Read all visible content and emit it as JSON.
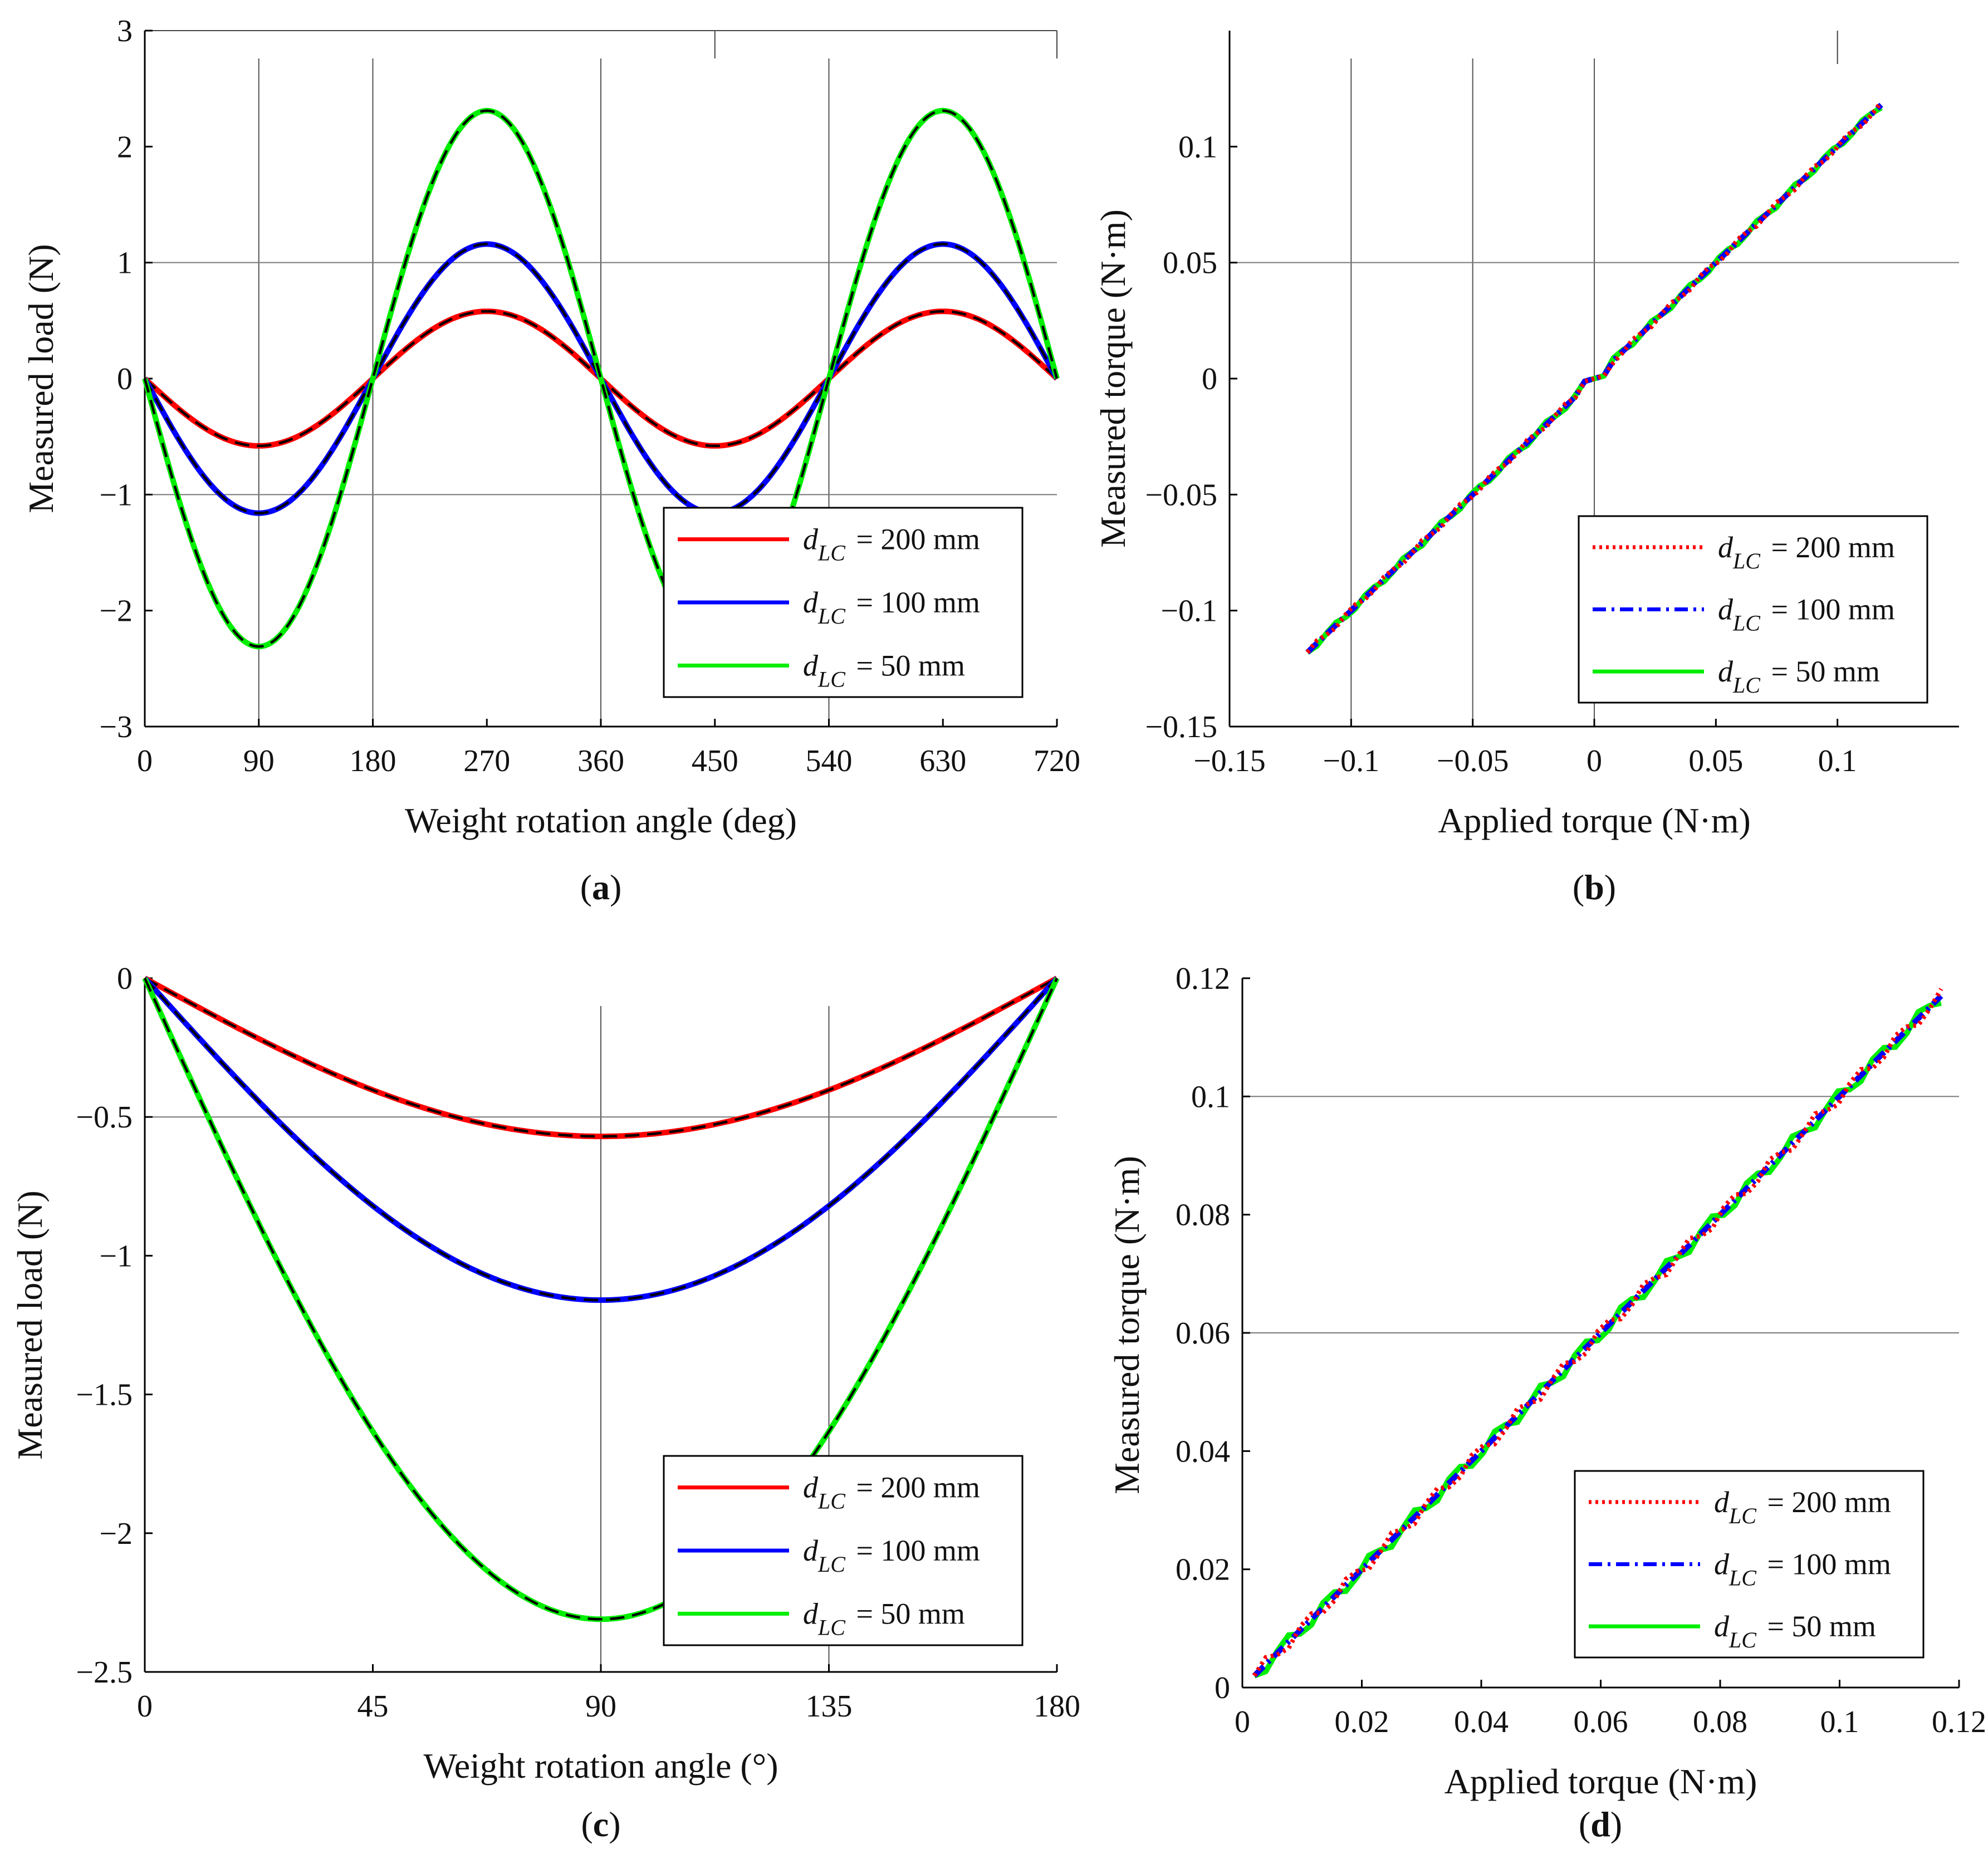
{
  "panel_labels": [
    "(a)",
    "(b)",
    "(c)",
    "(d)"
  ],
  "legend_entries": [
    {
      "var": "d",
      "sub": "LC",
      "text": "= 200 mm"
    },
    {
      "var": "d",
      "sub": "LC",
      "text": "= 100 mm"
    },
    {
      "var": "d",
      "sub": "LC",
      "text": "=   50 mm"
    }
  ],
  "colors": {
    "red": "#ff0000",
    "blue": "#0000ff",
    "green": "#00ee00",
    "black": "#000000"
  },
  "chart_data": [
    {
      "type": "line",
      "panel": "(a)",
      "xlabel": "Weight rotation angle (deg)",
      "ylabel": "Measured load (N)",
      "xlim": [
        0,
        720
      ],
      "ylim": [
        -3,
        3
      ],
      "xticks": [
        0,
        90,
        180,
        270,
        360,
        450,
        540,
        630,
        720
      ],
      "xtick_labels": [
        "0",
        "90",
        "180",
        "270",
        "360",
        "450",
        "540",
        "630",
        "720"
      ],
      "yticks": [
        -3,
        -2,
        -1,
        0,
        1,
        2,
        3
      ],
      "ytick_labels": [
        "−3",
        "−2",
        "−1",
        "0",
        "1",
        "2",
        "3"
      ],
      "function": "-A*sin(x)",
      "amplitudes": [
        0.58,
        1.16,
        2.31
      ],
      "series_colors": [
        "#ff0000",
        "#0000ff",
        "#00ee00"
      ],
      "series_style": "solid",
      "fit_overlay": "black dashed",
      "legend_style": "solid",
      "legend_position": "lower-right"
    },
    {
      "type": "line",
      "panel": "(b)",
      "xlabel": "Applied torque (N·m)",
      "ylabel": "Measured torque (N·m)",
      "xlim": [
        -0.15,
        0.15
      ],
      "ylim": [
        -0.15,
        0.15
      ],
      "xticks": [
        -0.15,
        -0.1,
        -0.05,
        0,
        0.05,
        0.1
      ],
      "xtick_labels": [
        "−0.15",
        "−0.1",
        "−0.05",
        "0",
        "0.05",
        "0.1"
      ],
      "yticks": [
        -0.15,
        -0.1,
        -0.05,
        0,
        0.05,
        0.1
      ],
      "ytick_labels": [
        "−0.15",
        "−0.1",
        "−0.05",
        "0",
        "0.05",
        "0.1"
      ],
      "x_range": [
        -0.118,
        0.118
      ],
      "series_colors": [
        "#00ee00",
        "#0000ff",
        "#ff0000"
      ],
      "series_style": [
        "solid",
        "dashdot",
        "dotted"
      ],
      "legend_style": [
        "dotted",
        "dashdot",
        "solid"
      ],
      "legend_position": "lower-right"
    },
    {
      "type": "line",
      "panel": "(c)",
      "xlabel": "Weight rotation angle (°)",
      "ylabel": "Measured load (N)",
      "xlim": [
        0,
        180
      ],
      "ylim": [
        -2.5,
        0
      ],
      "xticks": [
        0,
        45,
        90,
        135,
        180
      ],
      "xtick_labels": [
        "0",
        "45",
        "90",
        "135",
        "180"
      ],
      "yticks": [
        -2.5,
        -2,
        -1.5,
        -1,
        -0.5,
        0
      ],
      "ytick_labels": [
        "−2.5",
        "−2",
        "−1.5",
        "−1",
        "−0.5",
        "0"
      ],
      "function": "-A*sin(x)",
      "amplitudes": [
        0.57,
        1.16,
        2.31
      ],
      "series_colors": [
        "#ff0000",
        "#0000ff",
        "#00ee00"
      ],
      "series_style": "solid",
      "fit_overlay": "black dashed",
      "legend_style": "solid",
      "legend_position": "lower-right"
    },
    {
      "type": "line",
      "panel": "(d)",
      "xlabel": "Applied torque (N·m)",
      "ylabel": "Measured torque (N·m)",
      "xlim": [
        0,
        0.12
      ],
      "ylim": [
        0,
        0.12
      ],
      "xticks": [
        0,
        0.02,
        0.04,
        0.06,
        0.08,
        0.1,
        0.12
      ],
      "xtick_labels": [
        "0",
        "0.02",
        "0.04",
        "0.06",
        "0.08",
        "0.1",
        "0.12"
      ],
      "yticks": [
        0,
        0.02,
        0.04,
        0.06,
        0.08,
        0.1,
        0.12
      ],
      "ytick_labels": [
        "0",
        "0.02",
        "0.04",
        "0.06",
        "0.08",
        "0.1",
        "0.12"
      ],
      "x_range": [
        0.002,
        0.117
      ],
      "series_colors": [
        "#00ee00",
        "#0000ff",
        "#ff0000"
      ],
      "series_style": [
        "solid",
        "dashdot",
        "dotted"
      ],
      "legend_style": [
        "dotted",
        "dashdot",
        "solid"
      ],
      "legend_position": "lower-right"
    }
  ]
}
